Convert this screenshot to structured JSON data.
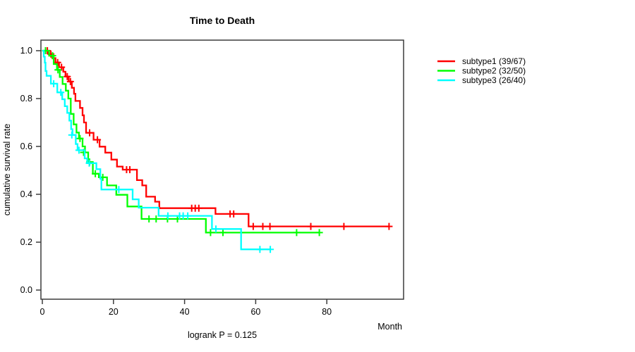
{
  "title": "Time to Death",
  "annotation": "logrank P = 0.125",
  "axes": {
    "x": {
      "label": "Month",
      "tick_labels": [
        "0",
        "20",
        "40",
        "60",
        "80"
      ],
      "tick_values": [
        0,
        20,
        40,
        60,
        80
      ]
    },
    "y": {
      "label": "cumulative survival rate",
      "tick_labels": [
        "0.0",
        "0.2",
        "0.4",
        "0.6",
        "0.8",
        "1.0"
      ],
      "tick_values": [
        0.0,
        0.2,
        0.4,
        0.6,
        0.8,
        1.0
      ]
    }
  },
  "legend": {
    "items": [
      {
        "label": "subtype1 (39/67)",
        "color": "#ff0000"
      },
      {
        "label": "subtype2 (32/50)",
        "color": "#00ff00"
      },
      {
        "label": "subtype3 (26/40)",
        "color": "#00ffff"
      }
    ]
  },
  "chart_data": {
    "type": "line",
    "subtype": "kaplan-meier-step",
    "title": "Time to Death",
    "xlabel": "Month",
    "ylabel": "cumulative survival rate",
    "xlim": [
      0,
      101
    ],
    "ylim": [
      0.0,
      1.0
    ],
    "grid": false,
    "legend_position": "right-outside",
    "annotation": "logrank P = 0.125",
    "series": [
      {
        "name": "subtype1 (39/67)",
        "color": "#ff0000",
        "steps": [
          [
            0,
            1.0
          ],
          [
            1.8,
            0.986
          ],
          [
            2.8,
            0.969
          ],
          [
            3.7,
            0.951
          ],
          [
            4.7,
            0.931
          ],
          [
            5.9,
            0.912
          ],
          [
            6.5,
            0.892
          ],
          [
            7.4,
            0.871
          ],
          [
            8.3,
            0.845
          ],
          [
            8.9,
            0.82
          ],
          [
            9.3,
            0.79
          ],
          [
            10.6,
            0.761
          ],
          [
            11.3,
            0.73
          ],
          [
            11.7,
            0.7
          ],
          [
            12.3,
            0.657
          ],
          [
            14.4,
            0.628
          ],
          [
            16.1,
            0.599
          ],
          [
            17.7,
            0.574
          ],
          [
            19.4,
            0.545
          ],
          [
            21.0,
            0.516
          ],
          [
            22.6,
            0.503
          ],
          [
            26.6,
            0.459
          ],
          [
            28.1,
            0.437
          ],
          [
            29.2,
            0.39
          ],
          [
            31.7,
            0.369
          ],
          [
            32.9,
            0.342
          ],
          [
            48.7,
            0.318
          ],
          [
            58.0,
            0.266
          ]
        ],
        "end_time": 97.5,
        "censors": [
          [
            1.4,
            1.0
          ],
          [
            2.4,
            0.986
          ],
          [
            4.3,
            0.951
          ],
          [
            5.4,
            0.931
          ],
          [
            7.0,
            0.892
          ],
          [
            7.9,
            0.871
          ],
          [
            13.3,
            0.657
          ],
          [
            15.5,
            0.628
          ],
          [
            23.7,
            0.503
          ],
          [
            24.6,
            0.503
          ],
          [
            42.0,
            0.342
          ],
          [
            43.0,
            0.342
          ],
          [
            44.0,
            0.342
          ],
          [
            52.8,
            0.318
          ],
          [
            53.8,
            0.318
          ],
          [
            59.3,
            0.266
          ],
          [
            62.0,
            0.266
          ],
          [
            64.0,
            0.266
          ],
          [
            75.5,
            0.266
          ],
          [
            84.8,
            0.266
          ],
          [
            97.5,
            0.266
          ]
        ]
      },
      {
        "name": "subtype2 (32/50)",
        "color": "#00ff00",
        "steps": [
          [
            0,
            1.0
          ],
          [
            1.9,
            0.979
          ],
          [
            3.2,
            0.944
          ],
          [
            4.1,
            0.92
          ],
          [
            4.9,
            0.89
          ],
          [
            5.7,
            0.861
          ],
          [
            6.6,
            0.833
          ],
          [
            7.3,
            0.8
          ],
          [
            8.0,
            0.736
          ],
          [
            8.8,
            0.692
          ],
          [
            9.6,
            0.658
          ],
          [
            10.3,
            0.633
          ],
          [
            11.3,
            0.6
          ],
          [
            12.0,
            0.575
          ],
          [
            12.9,
            0.535
          ],
          [
            14.2,
            0.486
          ],
          [
            15.9,
            0.471
          ],
          [
            18.2,
            0.437
          ],
          [
            20.8,
            0.398
          ],
          [
            23.9,
            0.349
          ],
          [
            27.9,
            0.297
          ],
          [
            46.0,
            0.24
          ]
        ],
        "end_time": 77.9,
        "censors": [
          [
            0.9,
            1.0
          ],
          [
            2.9,
            0.979
          ],
          [
            4.4,
            0.92
          ],
          [
            10.6,
            0.633
          ],
          [
            11.6,
            0.575
          ],
          [
            13.3,
            0.535
          ],
          [
            14.9,
            0.486
          ],
          [
            17.0,
            0.471
          ],
          [
            30.0,
            0.297
          ],
          [
            32.0,
            0.297
          ],
          [
            35.2,
            0.297
          ],
          [
            38.0,
            0.297
          ],
          [
            47.3,
            0.24
          ],
          [
            50.8,
            0.24
          ],
          [
            71.5,
            0.24
          ],
          [
            77.9,
            0.24
          ]
        ]
      },
      {
        "name": "subtype3 (26/40)",
        "color": "#00ffff",
        "steps": [
          [
            0,
            1.0
          ],
          [
            0.4,
            0.975
          ],
          [
            0.7,
            0.95
          ],
          [
            0.9,
            0.915
          ],
          [
            1.2,
            0.895
          ],
          [
            2.4,
            0.862
          ],
          [
            4.2,
            0.826
          ],
          [
            5.6,
            0.797
          ],
          [
            6.3,
            0.768
          ],
          [
            7.0,
            0.74
          ],
          [
            7.6,
            0.708
          ],
          [
            8.1,
            0.672
          ],
          [
            8.5,
            0.648
          ],
          [
            9.4,
            0.61
          ],
          [
            9.9,
            0.584
          ],
          [
            11.9,
            0.55
          ],
          [
            12.6,
            0.53
          ],
          [
            15.2,
            0.505
          ],
          [
            16.3,
            0.465
          ],
          [
            16.6,
            0.42
          ],
          [
            25.4,
            0.379
          ],
          [
            27.1,
            0.344
          ],
          [
            32.7,
            0.31
          ],
          [
            47.7,
            0.255
          ],
          [
            55.9,
            0.17
          ]
        ],
        "end_time": 64.1,
        "censors": [
          [
            3.2,
            0.862
          ],
          [
            5.2,
            0.826
          ],
          [
            8.3,
            0.648
          ],
          [
            10.3,
            0.584
          ],
          [
            13.2,
            0.53
          ],
          [
            21.5,
            0.42
          ],
          [
            35.3,
            0.31
          ],
          [
            38.6,
            0.31
          ],
          [
            39.6,
            0.31
          ],
          [
            40.9,
            0.31
          ],
          [
            48.8,
            0.255
          ],
          [
            61.2,
            0.17
          ],
          [
            64.1,
            0.17
          ]
        ]
      }
    ]
  }
}
